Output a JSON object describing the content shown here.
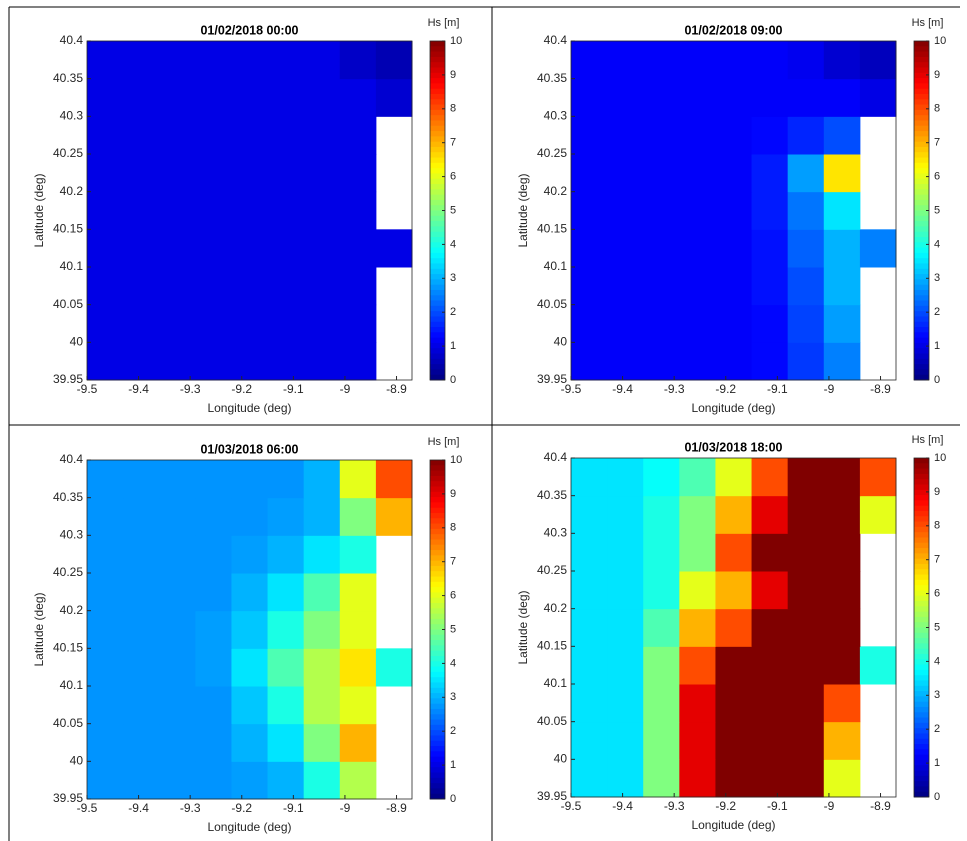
{
  "chart_data": [
    {
      "type": "heatmap",
      "title": "01/02/2018 00:00",
      "xlabel": "Longitude (deg)",
      "ylabel": "Latitude (deg)",
      "colorbar_label": "Hs [m]",
      "x": [
        -9.465,
        -9.395,
        -9.325,
        -9.255,
        -9.185,
        -9.115,
        -9.045,
        -8.975,
        -8.905
      ],
      "y": [
        39.975,
        40.025,
        40.075,
        40.125,
        40.175,
        40.225,
        40.275,
        40.325,
        40.375
      ],
      "z": [
        [
          1,
          1,
          1,
          1,
          1,
          1,
          1,
          1,
          null
        ],
        [
          1,
          1,
          1,
          1,
          1,
          1,
          1,
          1,
          null
        ],
        [
          1,
          1,
          1,
          1,
          1,
          1,
          1,
          1,
          null
        ],
        [
          1,
          1,
          1,
          1,
          1,
          1,
          1,
          1,
          1
        ],
        [
          1,
          1,
          1,
          1,
          1,
          1,
          1,
          1,
          null
        ],
        [
          1,
          1,
          1,
          1,
          1,
          1,
          1,
          1,
          null
        ],
        [
          1,
          1,
          1,
          1,
          1,
          1,
          1,
          1,
          null
        ],
        [
          1,
          1,
          1,
          1,
          1,
          1,
          1,
          1,
          0.8
        ],
        [
          1,
          1,
          1,
          1,
          1,
          1,
          1,
          0.7,
          0.5
        ]
      ],
      "xlim": [
        -9.5,
        -8.87
      ],
      "ylim": [
        39.95,
        40.4
      ],
      "xticks": [
        -9.5,
        -9.4,
        -9.3,
        -9.2,
        -9.1,
        -9,
        -8.9
      ],
      "yticks": [
        39.95,
        40,
        40.05,
        40.1,
        40.15,
        40.2,
        40.25,
        40.3,
        40.35,
        40.4
      ],
      "clim": [
        0,
        10
      ],
      "cticks": [
        0,
        1,
        2,
        3,
        4,
        5,
        6,
        7,
        8,
        9,
        10
      ]
    },
    {
      "type": "heatmap",
      "title": "01/02/2018 09:00",
      "xlabel": "Longitude (deg)",
      "ylabel": "Latitude (deg)",
      "colorbar_label": "Hs [m]",
      "x": [
        -9.465,
        -9.395,
        -9.325,
        -9.255,
        -9.185,
        -9.115,
        -9.045,
        -8.975,
        -8.905
      ],
      "y": [
        39.975,
        40.025,
        40.075,
        40.125,
        40.175,
        40.225,
        40.275,
        40.325,
        40.375
      ],
      "z": [
        [
          1.2,
          1.2,
          1.2,
          1.2,
          1.2,
          1.3,
          1.8,
          2.5,
          null
        ],
        [
          1.2,
          1.2,
          1.2,
          1.2,
          1.2,
          1.3,
          1.9,
          2.8,
          null
        ],
        [
          1.2,
          1.2,
          1.2,
          1.2,
          1.2,
          1.4,
          2,
          3,
          null
        ],
        [
          1.2,
          1.2,
          1.2,
          1.2,
          1.2,
          1.4,
          2.2,
          3,
          2.5
        ],
        [
          1.2,
          1.2,
          1.2,
          1.2,
          1.2,
          1.5,
          2.4,
          3.5,
          null
        ],
        [
          1.2,
          1.2,
          1.2,
          1.2,
          1.2,
          1.5,
          2.8,
          6.5,
          null
        ],
        [
          1.2,
          1.2,
          1.2,
          1.2,
          1.2,
          1.3,
          1.6,
          2,
          null
        ],
        [
          1.2,
          1.2,
          1.2,
          1.2,
          1.2,
          1.2,
          1.2,
          1.2,
          1
        ],
        [
          1.2,
          1.2,
          1.2,
          1.2,
          1.2,
          1.2,
          1.1,
          0.8,
          0.6
        ]
      ],
      "xlim": [
        -9.5,
        -8.87
      ],
      "ylim": [
        39.95,
        40.4
      ],
      "xticks": [
        -9.5,
        -9.4,
        -9.3,
        -9.2,
        -9.1,
        -9,
        -8.9
      ],
      "yticks": [
        39.95,
        40,
        40.05,
        40.1,
        40.15,
        40.2,
        40.25,
        40.3,
        40.35,
        40.4
      ],
      "clim": [
        0,
        10
      ],
      "cticks": [
        0,
        1,
        2,
        3,
        4,
        5,
        6,
        7,
        8,
        9,
        10
      ]
    },
    {
      "type": "heatmap",
      "title": "01/03/2018 06:00",
      "xlabel": "Longitude (deg)",
      "ylabel": "Latitude (deg)",
      "colorbar_label": "Hs [m]",
      "x": [
        -9.465,
        -9.395,
        -9.325,
        -9.255,
        -9.185,
        -9.115,
        -9.045,
        -8.975,
        -8.905
      ],
      "y": [
        39.975,
        40.025,
        40.075,
        40.125,
        40.175,
        40.225,
        40.275,
        40.325,
        40.375
      ],
      "z": [
        [
          2.7,
          2.7,
          2.7,
          2.7,
          2.8,
          3,
          4,
          5.5,
          null
        ],
        [
          2.7,
          2.7,
          2.7,
          2.7,
          3,
          3.5,
          5,
          7,
          null
        ],
        [
          2.7,
          2.7,
          2.7,
          2.7,
          3.2,
          4,
          5.5,
          6,
          null
        ],
        [
          2.7,
          2.7,
          2.7,
          2.8,
          3.5,
          4.5,
          5.5,
          6.5,
          4
        ],
        [
          2.7,
          2.7,
          2.7,
          2.8,
          3.2,
          4,
          5,
          6,
          null
        ],
        [
          2.7,
          2.7,
          2.7,
          2.7,
          3,
          3.5,
          4.5,
          6,
          null
        ],
        [
          2.7,
          2.7,
          2.7,
          2.7,
          2.8,
          3,
          3.5,
          4,
          null
        ],
        [
          2.7,
          2.7,
          2.7,
          2.7,
          2.7,
          2.8,
          3,
          5,
          7
        ],
        [
          2.7,
          2.7,
          2.7,
          2.7,
          2.7,
          2.7,
          3,
          6,
          8
        ]
      ],
      "xlim": [
        -9.5,
        -8.87
      ],
      "ylim": [
        39.95,
        40.4
      ],
      "xticks": [
        -9.5,
        -9.4,
        -9.3,
        -9.2,
        -9.1,
        -9,
        -8.9
      ],
      "yticks": [
        39.95,
        40,
        40.05,
        40.1,
        40.15,
        40.2,
        40.25,
        40.3,
        40.35,
        40.4
      ],
      "clim": [
        0,
        10
      ],
      "cticks": [
        0,
        1,
        2,
        3,
        4,
        5,
        6,
        7,
        8,
        9,
        10
      ]
    },
    {
      "type": "heatmap",
      "title": "01/03/2018 18:00",
      "xlabel": "Longitude (deg)",
      "ylabel": "Latitude (deg)",
      "colorbar_label": "Hs [m]",
      "x": [
        -9.465,
        -9.395,
        -9.325,
        -9.255,
        -9.185,
        -9.115,
        -9.045,
        -8.975,
        -8.905
      ],
      "y": [
        39.975,
        40.025,
        40.075,
        40.125,
        40.175,
        40.225,
        40.275,
        40.325,
        40.375
      ],
      "z": [
        [
          3.5,
          3.5,
          5,
          9,
          10,
          10,
          10,
          6,
          null
        ],
        [
          3.5,
          3.5,
          5,
          9,
          10,
          10,
          10,
          7,
          null
        ],
        [
          3.5,
          3.5,
          5,
          9,
          10,
          10,
          10,
          8,
          null
        ],
        [
          3.5,
          3.5,
          5,
          8,
          10,
          10,
          10,
          10,
          4
        ],
        [
          3.5,
          3.5,
          4.5,
          7,
          8,
          10,
          10,
          10,
          null
        ],
        [
          3.5,
          3.5,
          4,
          6,
          7,
          9,
          10,
          10,
          null
        ],
        [
          3.5,
          3.5,
          4,
          5,
          8,
          10,
          10,
          10,
          null
        ],
        [
          3.5,
          3.5,
          4,
          5,
          7,
          9,
          10,
          10,
          6
        ],
        [
          3.5,
          3.5,
          3.8,
          4.5,
          6,
          8,
          10,
          10,
          8
        ]
      ],
      "xlim": [
        -9.5,
        -8.87
      ],
      "ylim": [
        39.95,
        40.4
      ],
      "xticks": [
        -9.5,
        -9.4,
        -9.3,
        -9.2,
        -9.1,
        -9,
        -8.9
      ],
      "yticks": [
        39.95,
        40,
        40.05,
        40.1,
        40.15,
        40.2,
        40.25,
        40.3,
        40.35,
        40.4
      ],
      "clim": [
        0,
        10
      ],
      "cticks": [
        0,
        1,
        2,
        3,
        4,
        5,
        6,
        7,
        8,
        9,
        10
      ]
    }
  ]
}
